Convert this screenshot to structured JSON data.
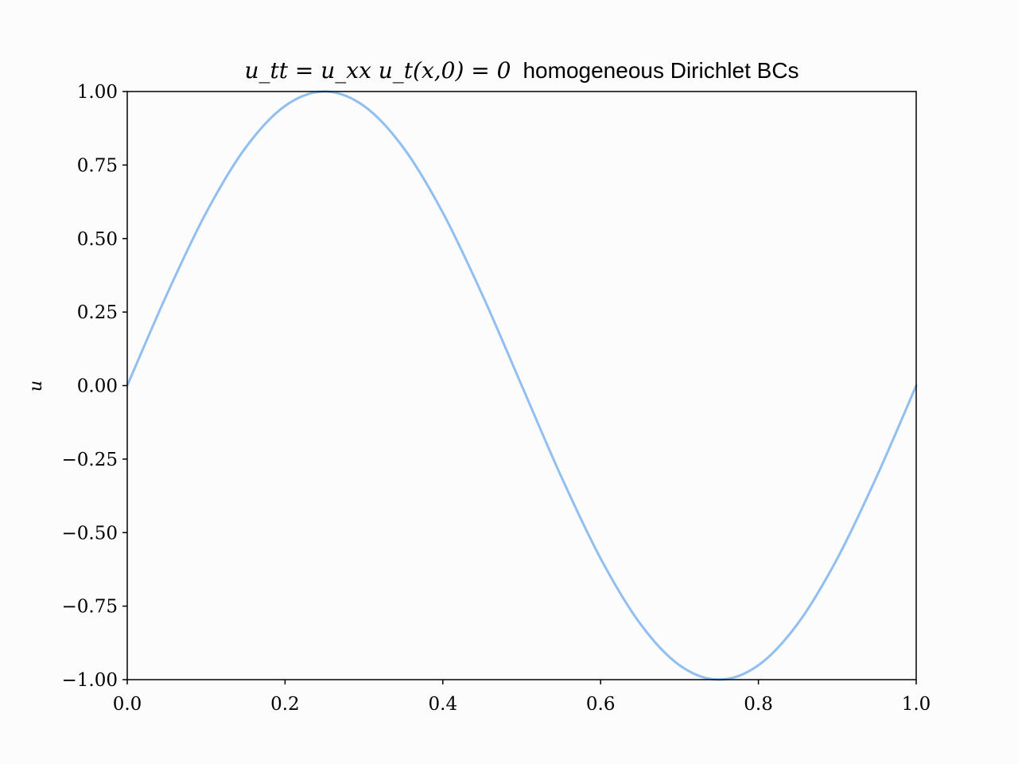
{
  "chart_data": {
    "type": "line",
    "title": {
      "math": "u_tt = u_xx u_t(x,0) = 0",
      "text": "homogeneous Dirichlet BCs"
    },
    "xlabel": "",
    "ylabel": "u",
    "xlim": [
      0.0,
      1.0
    ],
    "ylim": [
      -1.0,
      1.0
    ],
    "x_ticks": [
      0.0,
      0.2,
      0.4,
      0.6,
      0.8,
      1.0
    ],
    "x_tick_labels": [
      "0.0",
      "0.2",
      "0.4",
      "0.6",
      "0.8",
      "1.0"
    ],
    "y_ticks": [
      1.0,
      0.75,
      0.5,
      0.25,
      0.0,
      -0.25,
      -0.5,
      -0.75,
      -1.0
    ],
    "y_tick_labels": [
      "1.00",
      "0.75",
      "0.50",
      "0.25",
      "0.00",
      "−0.25",
      "−0.50",
      "−0.75",
      "−1.00"
    ],
    "grid": false,
    "series": [
      {
        "color": "#90bff0",
        "x": [
          0.0,
          0.05,
          0.1,
          0.15,
          0.2,
          0.25,
          0.3,
          0.35,
          0.4,
          0.45,
          0.5,
          0.55,
          0.6,
          0.65,
          0.7,
          0.75,
          0.8,
          0.85,
          0.9,
          0.95,
          1.0
        ],
        "y": [
          0.0,
          0.309,
          0.588,
          0.809,
          0.951,
          1.0,
          0.951,
          0.809,
          0.588,
          0.309,
          0.0,
          -0.309,
          -0.588,
          -0.809,
          -0.951,
          -1.0,
          -0.951,
          -0.809,
          -0.588,
          -0.309,
          0.0
        ]
      }
    ]
  }
}
